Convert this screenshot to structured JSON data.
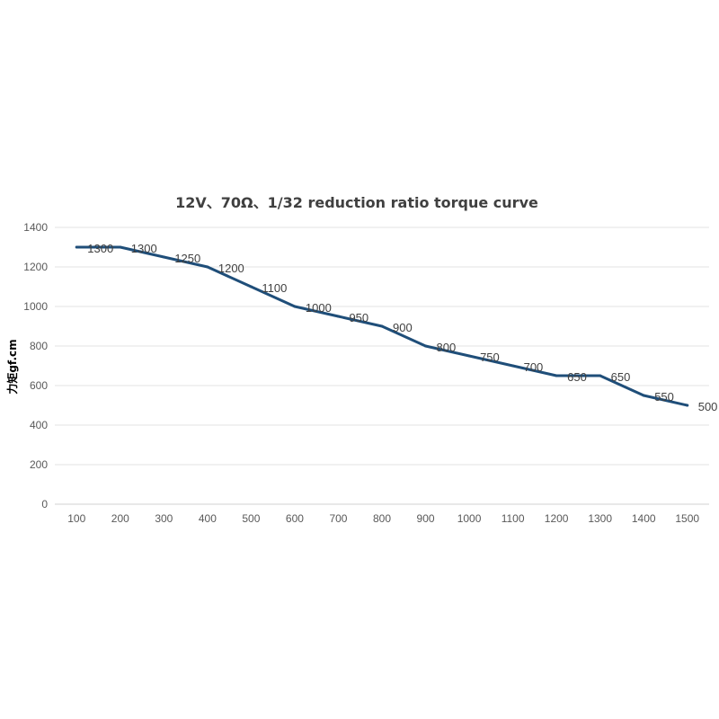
{
  "chart_data": {
    "type": "line",
    "title": "12V、70Ω、1/32 reduction ratio torque curve",
    "ylabel": "力矩gf.cm",
    "xlabel": "",
    "categories": [
      "100",
      "200",
      "300",
      "400",
      "500",
      "600",
      "700",
      "800",
      "900",
      "1000",
      "1100",
      "1200",
      "1300",
      "1400",
      "1500"
    ],
    "ylim": [
      0,
      1400
    ],
    "yticks": [
      0,
      200,
      400,
      600,
      800,
      1000,
      1200,
      1400
    ],
    "grid": true,
    "legend": "none",
    "series": [
      {
        "color": "#1f4e79",
        "values": [
          1300,
          1300,
          1250,
          1200,
          1100,
          1000,
          950,
          900,
          800,
          750,
          700,
          650,
          650,
          550,
          500
        ],
        "data_labels": [
          "1300",
          "1300",
          "1250",
          "1200",
          "1100",
          "1000",
          "950",
          "900",
          "800",
          "750",
          "700",
          "650",
          "650",
          "550",
          "500"
        ]
      }
    ]
  }
}
